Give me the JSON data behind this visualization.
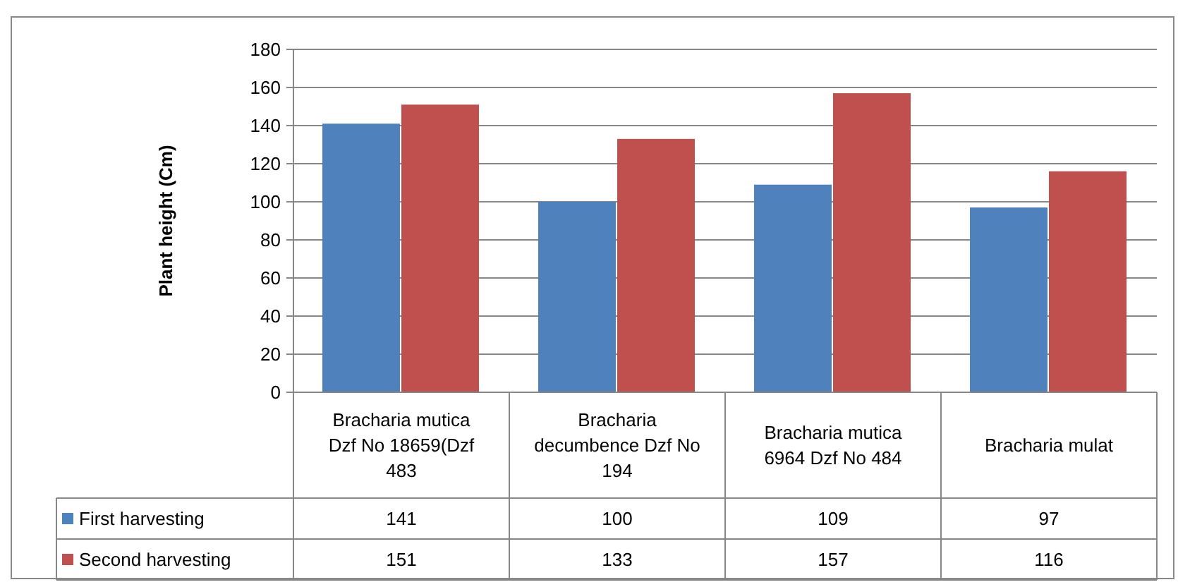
{
  "chart_data": {
    "type": "bar",
    "ylabel": "Plant height (Cm)",
    "categories": [
      "Bracharia mutica Dzf No 18659(Dzf 483",
      "Bracharia decumbence Dzf No 194",
      "Bracharia mutica 6964 Dzf No 484",
      "Bracharia mulat"
    ],
    "series": [
      {
        "name": "First harvesting",
        "color": "#4f81bd",
        "values": [
          141,
          100,
          109,
          97
        ]
      },
      {
        "name": "Second harvesting",
        "color": "#c0504d",
        "values": [
          151,
          133,
          157,
          116
        ]
      }
    ],
    "ylim": [
      0,
      180
    ],
    "yticks": [
      0,
      20,
      40,
      60,
      80,
      100,
      120,
      140,
      160,
      180
    ],
    "grid": "y",
    "legend": "bottom left",
    "data_labels": true
  }
}
